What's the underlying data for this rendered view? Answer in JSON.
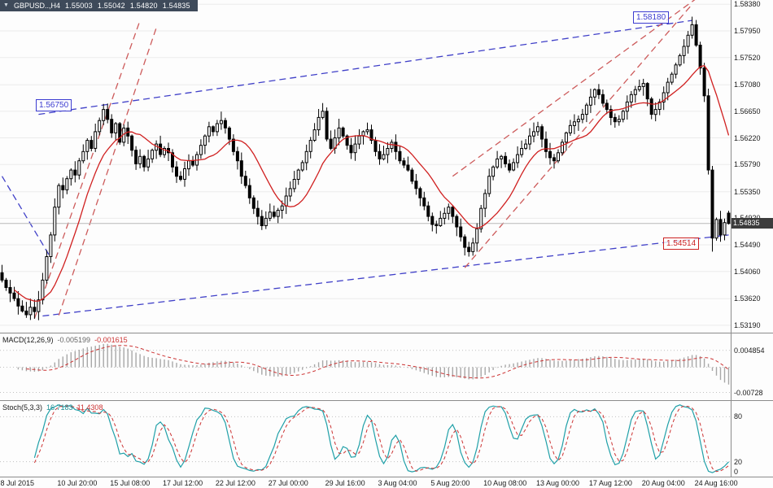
{
  "title": {
    "symbol_period": "GBPUSD..,H4",
    "open": "1.55003",
    "high": "1.55042",
    "low": "1.54820",
    "close": "1.54835"
  },
  "chart_data": {
    "type": "candlestick",
    "symbol": "GBPUSD",
    "period": "H4",
    "ylim": [
      1.5307,
      1.5845
    ],
    "ma_period": 12,
    "closes": [
      1.5392,
      1.538,
      1.5371,
      1.5362,
      1.535,
      1.5342,
      1.5336,
      1.5348,
      1.5341,
      1.536,
      1.5392,
      1.543,
      1.5465,
      1.551,
      1.5545,
      1.5538,
      1.5556,
      1.557,
      1.5562,
      1.5585,
      1.56,
      1.5618,
      1.5605,
      1.5632,
      1.565,
      1.5668,
      1.5652,
      1.563,
      1.5645,
      1.5615,
      1.5638,
      1.5625,
      1.5602,
      1.558,
      1.5592,
      1.5575,
      1.5588,
      1.5602,
      1.5612,
      1.5595,
      1.5605,
      1.5598,
      1.5575,
      1.556,
      1.5555,
      1.5572,
      1.5585,
      1.5578,
      1.5595,
      1.561,
      1.5625,
      1.564,
      1.5632,
      1.5645,
      1.565,
      1.5638,
      1.562,
      1.56,
      1.5585,
      1.556,
      1.5545,
      1.5525,
      1.5508,
      1.5495,
      1.548,
      1.5492,
      1.5502,
      1.5495,
      1.5505,
      1.5512,
      1.5528,
      1.554,
      1.5555,
      1.557,
      1.5582,
      1.56,
      1.5618,
      1.5635,
      1.5655,
      1.5665,
      1.562,
      1.5605,
      1.5622,
      1.5638,
      1.5625,
      1.561,
      1.5598,
      1.5612,
      1.5625,
      1.5632,
      1.5635,
      1.5618,
      1.56,
      1.5588,
      1.5595,
      1.5605,
      1.5615,
      1.56,
      1.5585,
      1.5578,
      1.557,
      1.5552,
      1.554,
      1.5525,
      1.5512,
      1.5495,
      1.5482,
      1.548,
      1.5492,
      1.55,
      1.551,
      1.5495,
      1.5478,
      1.5462,
      1.5445,
      1.5438,
      1.5452,
      1.5475,
      1.5508,
      1.5532,
      1.556,
      1.5575,
      1.5588,
      1.5592,
      1.558,
      1.557,
      1.5582,
      1.5595,
      1.5605,
      1.5612,
      1.5625,
      1.5632,
      1.564,
      1.562,
      1.56,
      1.559,
      1.5585,
      1.5598,
      1.5615,
      1.563,
      1.5642,
      1.5648,
      1.5652,
      1.566,
      1.5675,
      1.5688,
      1.57,
      1.5692,
      1.5678,
      1.5668,
      1.5655,
      1.5648,
      1.5652,
      1.5665,
      1.568,
      1.5692,
      1.57,
      1.5705,
      1.571,
      1.5685,
      1.566,
      1.5668,
      1.568,
      1.5695,
      1.5712,
      1.5725,
      1.574,
      1.5755,
      1.577,
      1.5788,
      1.5805,
      1.5772,
      1.5735,
      1.569,
      1.557,
      1.546,
      1.549,
      1.5465,
      1.5485,
      1.54835
    ],
    "last_candle": {
      "o": 1.55003,
      "h": 1.55042,
      "l": 1.5482,
      "c": 1.54835
    },
    "extremes": {
      "high_index": 170,
      "high": 1.5818,
      "low_index": 175,
      "low": 1.5438
    },
    "current_price": "1.54835",
    "price_axis": [
      "1.58380",
      "1.57950",
      "1.57520",
      "1.57080",
      "1.56650",
      "1.56220",
      "1.55790",
      "1.55350",
      "1.54920",
      "1.54490",
      "1.54060",
      "1.53620",
      "1.53190"
    ],
    "time_axis": [
      {
        "text": "8 Jul 2015",
        "i": 0
      },
      {
        "text": "10 Jul 20:00",
        "i": 14
      },
      {
        "text": "15 Jul 08:00",
        "i": 27
      },
      {
        "text": "17 Jul 12:00",
        "i": 40
      },
      {
        "text": "22 Jul 12:00",
        "i": 53
      },
      {
        "text": "27 Jul 00:00",
        "i": 66
      },
      {
        "text": "29 Jul 16:00",
        "i": 80
      },
      {
        "text": "3 Aug 04:00",
        "i": 93
      },
      {
        "text": "5 Aug 20:00",
        "i": 106
      },
      {
        "text": "10 Aug 08:00",
        "i": 119
      },
      {
        "text": "13 Aug 00:00",
        "i": 132
      },
      {
        "text": "17 Aug 12:00",
        "i": 145
      },
      {
        "text": "20 Aug 04:00",
        "i": 158
      },
      {
        "text": "24 Aug 16:00",
        "i": 171
      }
    ],
    "price_labels": [
      {
        "text": "1.56750",
        "price": 1.5675,
        "x": 44,
        "color": "#3b3bd0"
      },
      {
        "text": "1.58180",
        "price": 1.5818,
        "x": 778,
        "color": "#3b3bd0"
      },
      {
        "text": "1.54514",
        "price": 1.54514,
        "x": 815,
        "color": "#cc2222"
      }
    ],
    "trendlines": [
      {
        "x1": 9,
        "p1": 1.566,
        "x2": 170,
        "p2": 1.5812,
        "color": "blue"
      },
      {
        "x1": 10,
        "p1": 1.5334,
        "x2": 179,
        "p2": 1.5465,
        "color": "blue"
      },
      {
        "x1": 0,
        "p1": 1.556,
        "x2": 12,
        "p2": 1.5428,
        "color": "blue"
      },
      {
        "x1": 8,
        "p1": 1.533,
        "x2": 34,
        "p2": 1.5812,
        "color": "red"
      },
      {
        "x1": 14,
        "p1": 1.5335,
        "x2": 38,
        "p2": 1.58,
        "color": "red"
      },
      {
        "x1": 114,
        "p1": 1.5412,
        "x2": 170,
        "p2": 1.5838,
        "color": "red"
      },
      {
        "x1": 111,
        "p1": 1.556,
        "x2": 172,
        "p2": 1.5852,
        "color": "red"
      }
    ],
    "indicators": {
      "macd": {
        "label": "MACD(12,26,9)",
        "value": "-0.005199",
        "signal": "-0.001615",
        "range": [
          -0.0095,
          0.0095
        ],
        "axis": [
          {
            "text": "0.004854",
            "v": 0.004854
          },
          {
            "text": "-0.00728",
            "v": -0.00728
          }
        ]
      },
      "stoch": {
        "label": "Stoch(5,3,3)",
        "k": "16.7183",
        "d": "11.4308",
        "axis": [
          {
            "text": "80",
            "v": 80
          },
          {
            "text": "20",
            "v": 20
          },
          {
            "text": "0",
            "v": 0
          }
        ]
      }
    }
  },
  "colors": {
    "candle_up": "#ffffff",
    "candle_down": "#000000",
    "candle_border": "#000000",
    "ma": "#d02020",
    "trend_blue": "#4040c8",
    "trend_red": "#cd5b5b",
    "macd_hist": "#a8a8a8",
    "macd_signal": "#cc3333",
    "stoch_k": "#20a0a8",
    "stoch_d": "#cc3333",
    "grid": "#ebebeb",
    "ind_grid": "#c0c0c0",
    "panel_border": "#8c8c8c",
    "current_line": "#b8b8b8",
    "badge_bg": "#3c3c3c"
  }
}
